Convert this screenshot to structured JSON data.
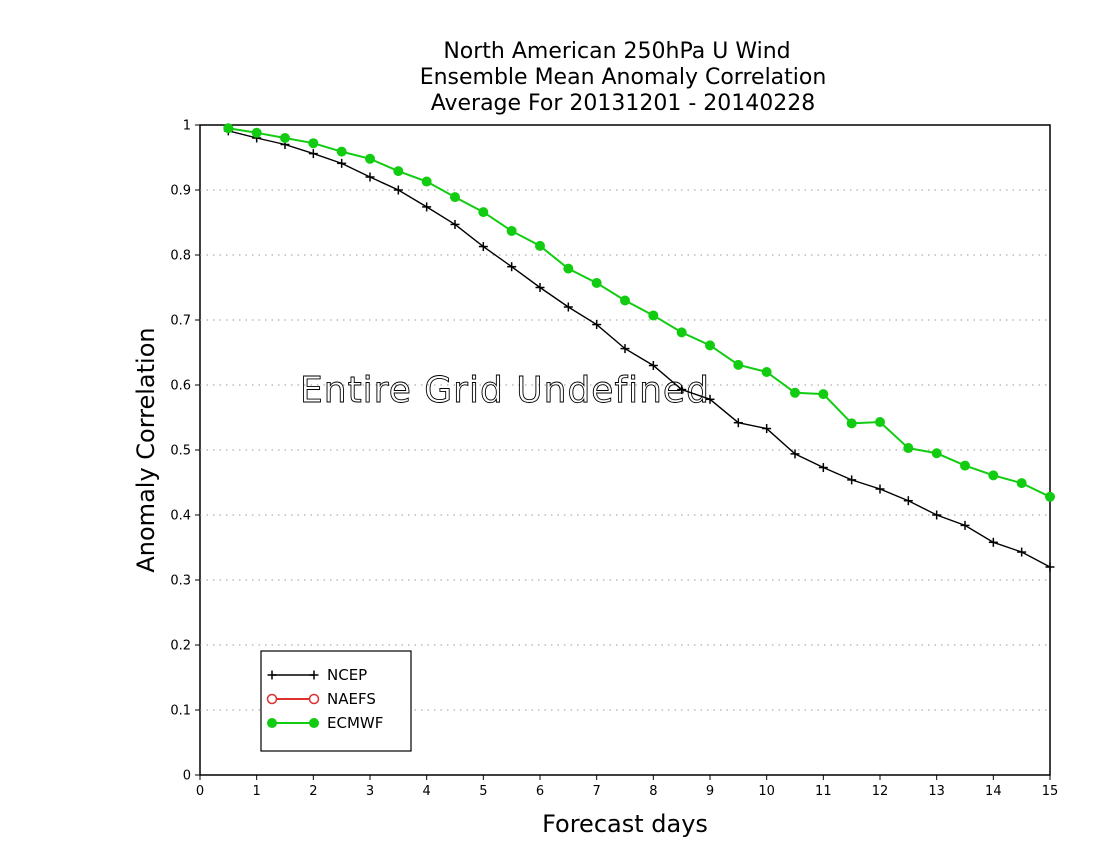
{
  "chart_data": {
    "type": "line",
    "title_lines": [
      "North American 250hPa U Wind",
      "Ensemble Mean Anomaly Correlation",
      "Average For 20131201 - 20140228"
    ],
    "xlabel": "Forecast days",
    "ylabel": "Anomaly Correlation",
    "xlim": [
      0,
      15
    ],
    "ylim": [
      0,
      1
    ],
    "x_ticks": [
      "0",
      "1",
      "2",
      "3",
      "4",
      "5",
      "6",
      "7",
      "8",
      "9",
      "10",
      "11",
      "12",
      "13",
      "14",
      "15"
    ],
    "y_ticks": [
      "0",
      "0.1",
      "0.2",
      "0.3",
      "0.4",
      "0.5",
      "0.6",
      "0.7",
      "0.8",
      "0.9",
      "1"
    ],
    "grid": true,
    "legend_position": "bottom-left",
    "annotation": "Entire Grid Undefined",
    "series": [
      {
        "name": "NCEP",
        "color": "#000000",
        "marker": "plus",
        "x": [
          0.5,
          1,
          1.5,
          2,
          2.5,
          3,
          3.5,
          4,
          4.5,
          5,
          5.5,
          6,
          6.5,
          7,
          7.5,
          8,
          8.5,
          9,
          9.5,
          10,
          10.5,
          11,
          11.5,
          12,
          12.5,
          13,
          13.5,
          14,
          14.5,
          15
        ],
        "values": [
          0.991,
          0.98,
          0.97,
          0.956,
          0.941,
          0.92,
          0.9,
          0.874,
          0.847,
          0.813,
          0.782,
          0.75,
          0.72,
          0.693,
          0.656,
          0.63,
          0.593,
          0.578,
          0.542,
          0.533,
          0.494,
          0.473,
          0.454,
          0.44,
          0.422,
          0.4,
          0.384,
          0.358,
          0.343,
          0.32
        ]
      },
      {
        "name": "NAEFS",
        "color": "#e03030",
        "marker": "open-circle",
        "x": [],
        "values": []
      },
      {
        "name": "ECMWF",
        "color": "#11cc11",
        "marker": "filled-circle",
        "x": [
          0.5,
          1,
          1.5,
          2,
          2.5,
          3,
          3.5,
          4,
          4.5,
          5,
          5.5,
          6,
          6.5,
          7,
          7.5,
          8,
          8.5,
          9,
          9.5,
          10,
          10.5,
          11,
          11.5,
          12,
          12.5,
          13,
          13.5,
          14,
          14.5,
          15
        ],
        "values": [
          0.995,
          0.988,
          0.98,
          0.972,
          0.959,
          0.948,
          0.929,
          0.913,
          0.889,
          0.866,
          0.837,
          0.814,
          0.779,
          0.757,
          0.73,
          0.707,
          0.681,
          0.661,
          0.631,
          0.62,
          0.588,
          0.586,
          0.541,
          0.543,
          0.503,
          0.495,
          0.476,
          0.461,
          0.449,
          0.428
        ]
      }
    ]
  }
}
